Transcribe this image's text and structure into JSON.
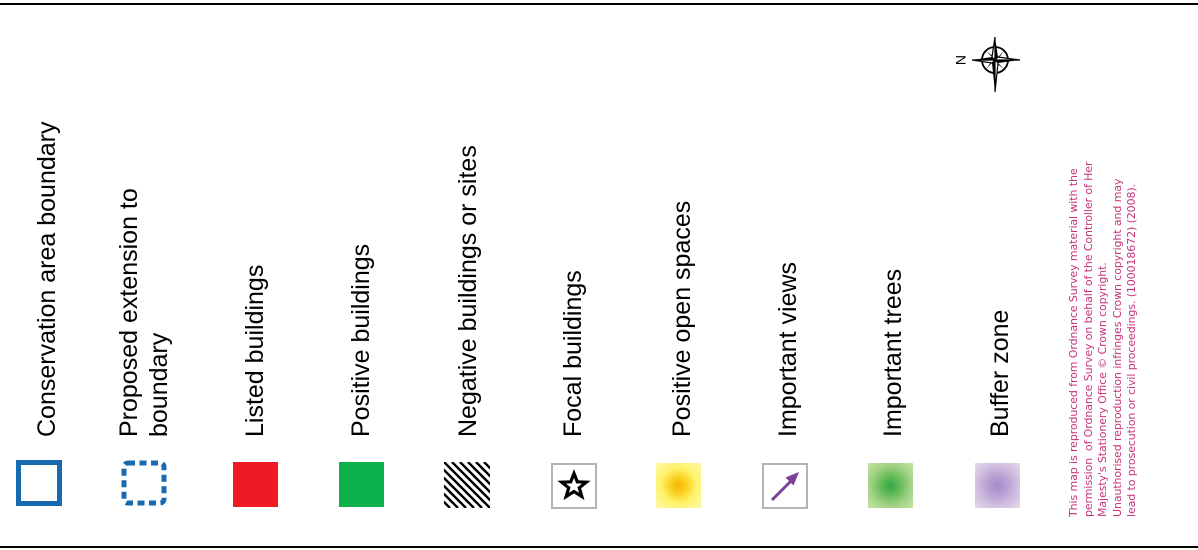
{
  "colors": {
    "frame": "#000000",
    "boundary": "#1769b0",
    "listed": "#ed1c24",
    "positive": "#0db14b",
    "views_arrow": "#7f3f98",
    "open_space_center": "#f5b400",
    "open_space_edge": "#fff69a",
    "trees_center": "#33a84a",
    "trees_edge": "#c4e0a0",
    "buffer_center": "#a28bc9",
    "buffer_edge": "#e2d3e8",
    "copyright": "#c7337a"
  },
  "compass": {
    "icon": "compass-rose-icon",
    "north_letter": "N"
  },
  "legend": {
    "items": [
      {
        "label": "Conservation area boundary",
        "icon": "solid-outline-square-icon"
      },
      {
        "label": "Proposed extension to\nboundary",
        "icon": "dashed-outline-square-icon"
      },
      {
        "label": "Listed buildings",
        "icon": "red-square-icon"
      },
      {
        "label": "Positive buildings",
        "icon": "green-square-icon"
      },
      {
        "label": "Negative buildings or sites",
        "icon": "hatched-square-icon"
      },
      {
        "label": "Focal buildings",
        "icon": "star-icon"
      },
      {
        "label": "Positive open spaces",
        "icon": "yellow-glow-icon"
      },
      {
        "label": "Important views",
        "icon": "arrow-icon"
      },
      {
        "label": "Important trees",
        "icon": "green-glow-icon"
      },
      {
        "label": "Buffer zone",
        "icon": "purple-glow-icon"
      }
    ]
  },
  "copyright": {
    "text": "This map is reproduced from Ordnance Survey material with the\npermission  of Ordnance Survey on behalf of the Controller of Her\nMajesty's Stationery Office © Crown copyright.\nUnauthorised reproduction infringes Crown copyright and may\nlead to prosecution or civil proceedings. (100018672) (2008)."
  }
}
